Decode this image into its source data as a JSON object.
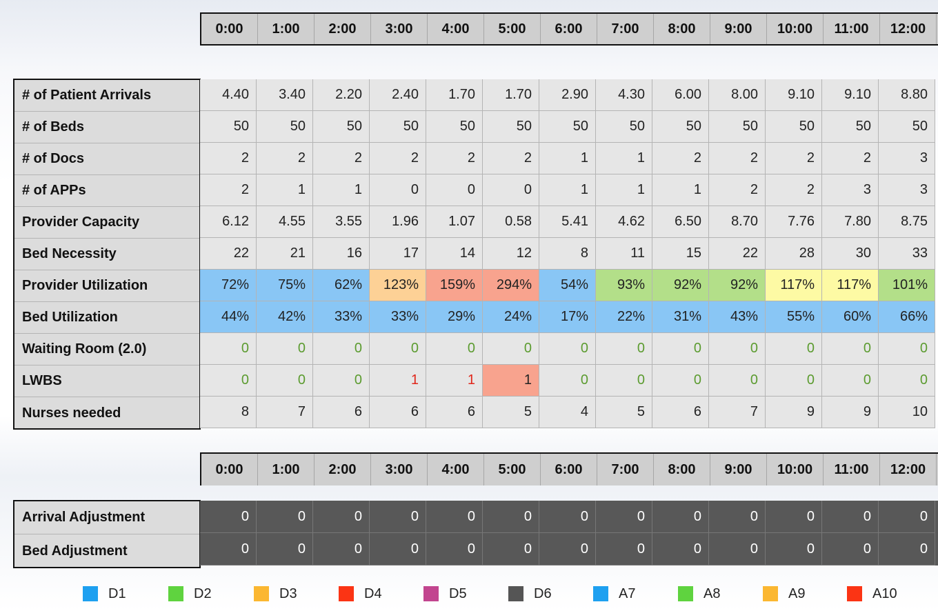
{
  "hours": [
    "0:00",
    "1:00",
    "2:00",
    "3:00",
    "4:00",
    "5:00",
    "6:00",
    "7:00",
    "8:00",
    "9:00",
    "10:00",
    "11:00",
    "12:00"
  ],
  "colors": {
    "blue": "#89c6f5",
    "green": "#b3df89",
    "orange": "#fdd196",
    "red": "#f8a38e",
    "yellow": "#fdfaa4",
    "text_green": "#5b9b2f",
    "text_red": "#e0261a"
  },
  "rows": [
    {
      "label": "# of Patient Arrivals",
      "values": [
        "4.40",
        "3.40",
        "2.20",
        "2.40",
        "1.70",
        "1.70",
        "2.90",
        "4.30",
        "6.00",
        "8.00",
        "9.10",
        "9.10",
        "8.80"
      ]
    },
    {
      "label": "# of Beds",
      "values": [
        "50",
        "50",
        "50",
        "50",
        "50",
        "50",
        "50",
        "50",
        "50",
        "50",
        "50",
        "50",
        "50"
      ]
    },
    {
      "label": "# of Docs",
      "values": [
        "2",
        "2",
        "2",
        "2",
        "2",
        "2",
        "1",
        "1",
        "2",
        "2",
        "2",
        "2",
        "3"
      ]
    },
    {
      "label": "# of APPs",
      "values": [
        "2",
        "1",
        "1",
        "0",
        "0",
        "0",
        "1",
        "1",
        "1",
        "2",
        "2",
        "3",
        "3"
      ]
    },
    {
      "label": "Provider Capacity",
      "values": [
        "6.12",
        "4.55",
        "3.55",
        "1.96",
        "1.07",
        "0.58",
        "5.41",
        "4.62",
        "6.50",
        "8.70",
        "7.76",
        "7.80",
        "8.75"
      ]
    },
    {
      "label": "Bed Necessity",
      "values": [
        "22",
        "21",
        "16",
        "17",
        "14",
        "12",
        "8",
        "11",
        "15",
        "22",
        "28",
        "30",
        "33"
      ]
    },
    {
      "label": "Provider Utilization",
      "values": [
        "72%",
        "75%",
        "62%",
        "123%",
        "159%",
        "294%",
        "54%",
        "93%",
        "92%",
        "92%",
        "117%",
        "117%",
        "101%"
      ],
      "bg": [
        "blue",
        "blue",
        "blue",
        "orange",
        "red",
        "red",
        "blue",
        "green",
        "green",
        "green",
        "yellow",
        "yellow",
        "green"
      ]
    },
    {
      "label": "Bed Utilization",
      "values": [
        "44%",
        "42%",
        "33%",
        "33%",
        "29%",
        "24%",
        "17%",
        "22%",
        "31%",
        "43%",
        "55%",
        "60%",
        "66%"
      ],
      "bg": [
        "blue",
        "blue",
        "blue",
        "blue",
        "blue",
        "blue",
        "blue",
        "blue",
        "blue",
        "blue",
        "blue",
        "blue",
        "blue"
      ]
    },
    {
      "label": "Waiting Room (2.0)",
      "values": [
        "0",
        "0",
        "0",
        "0",
        "0",
        "0",
        "0",
        "0",
        "0",
        "0",
        "0",
        "0",
        "0"
      ],
      "fg": [
        "green",
        "green",
        "green",
        "green",
        "green",
        "green",
        "green",
        "green",
        "green",
        "green",
        "green",
        "green",
        "green"
      ]
    },
    {
      "label": "LWBS",
      "values": [
        "0",
        "0",
        "0",
        "1",
        "1",
        "1",
        "0",
        "0",
        "0",
        "0",
        "0",
        "0",
        "0"
      ],
      "fg": [
        "green",
        "green",
        "green",
        "red",
        "red",
        "",
        "green",
        "green",
        "green",
        "green",
        "green",
        "green",
        "green"
      ],
      "bg": [
        "",
        "",
        "",
        "",
        "",
        "red",
        "",
        "",
        "",
        "",
        "",
        "",
        ""
      ]
    },
    {
      "label": "Nurses needed",
      "values": [
        "8",
        "7",
        "6",
        "6",
        "6",
        "5",
        "4",
        "5",
        "6",
        "7",
        "9",
        "9",
        "10"
      ]
    }
  ],
  "adjustments": [
    {
      "label": "Arrival Adjustment",
      "values": [
        "0",
        "0",
        "0",
        "0",
        "0",
        "0",
        "0",
        "0",
        "0",
        "0",
        "0",
        "0",
        "0"
      ]
    },
    {
      "label": "Bed Adjustment",
      "values": [
        "0",
        "0",
        "0",
        "0",
        "0",
        "0",
        "0",
        "0",
        "0",
        "0",
        "0",
        "0",
        "0"
      ]
    }
  ],
  "legend": [
    {
      "label": "D1",
      "color": "#1ea0f0"
    },
    {
      "label": "D2",
      "color": "#5fd33f"
    },
    {
      "label": "D3",
      "color": "#fbb731"
    },
    {
      "label": "D4",
      "color": "#fb3414"
    },
    {
      "label": "D5",
      "color": "#c2458f"
    },
    {
      "label": "D6",
      "color": "#555555"
    },
    {
      "label": "A7",
      "color": "#1ea0f0"
    },
    {
      "label": "A8",
      "color": "#5fd33f"
    },
    {
      "label": "A9",
      "color": "#fbb731"
    },
    {
      "label": "A10",
      "color": "#fb3414"
    }
  ]
}
